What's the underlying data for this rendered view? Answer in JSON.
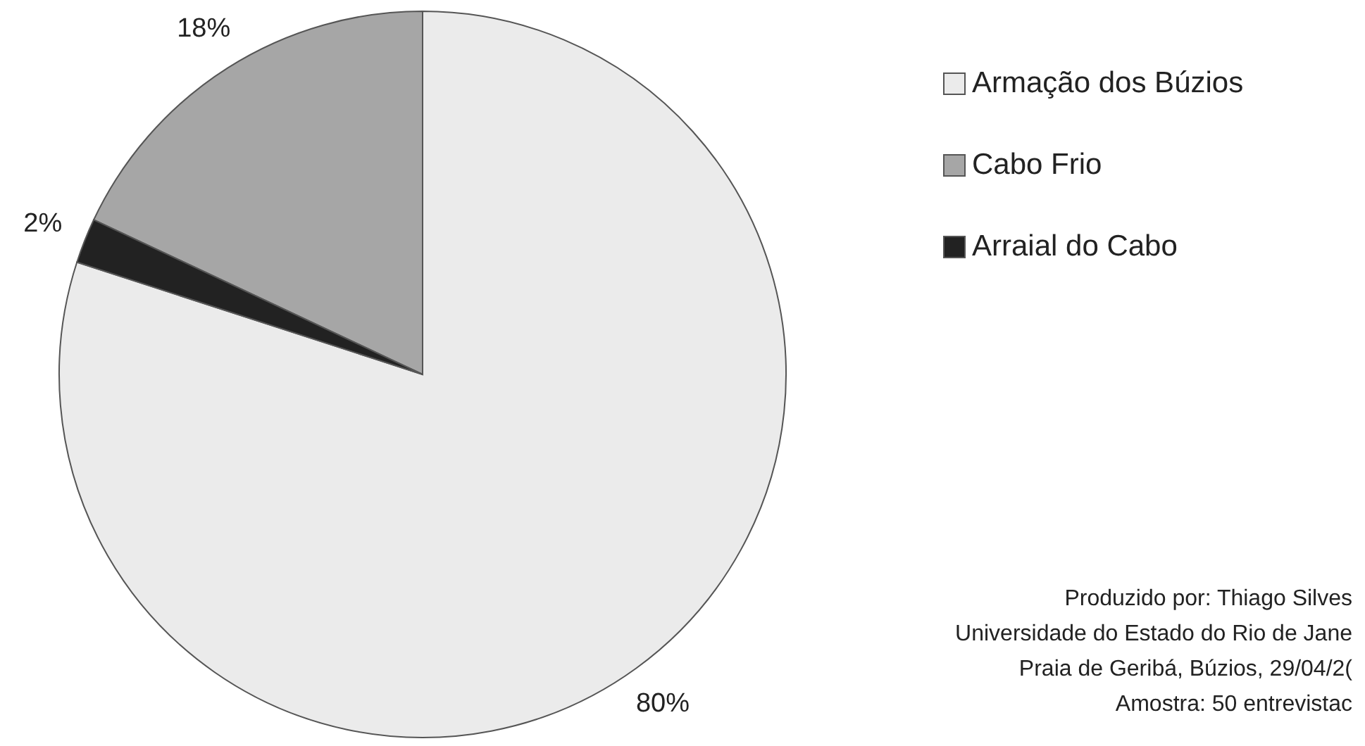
{
  "chart_data": {
    "type": "pie",
    "categories": [
      "Armação dos Búzios",
      "Cabo Frio",
      "Arraial do Cabo"
    ],
    "values": [
      80,
      18,
      2
    ],
    "colors": [
      "#ebebeb",
      "#a6a6a6",
      "#222222"
    ],
    "value_labels": [
      "80%",
      "18%",
      "2%"
    ],
    "legend": "right",
    "annotations": [
      "Produzido por: Thiago Silves",
      "Universidade do Estado do Rio de Jane",
      "Praia de Geribá, Búzios, 29/04/2(",
      "Amostra: 50 entrevistac"
    ]
  }
}
